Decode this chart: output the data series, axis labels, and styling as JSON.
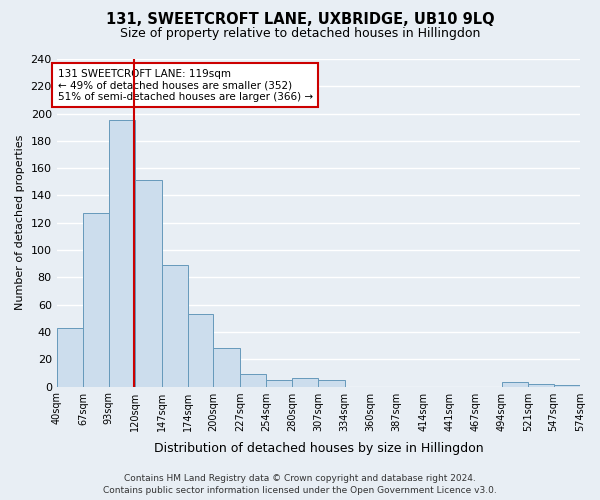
{
  "title": "131, SWEETCROFT LANE, UXBRIDGE, UB10 9LQ",
  "subtitle": "Size of property relative to detached houses in Hillingdon",
  "xlabel": "Distribution of detached houses by size in Hillingdon",
  "ylabel": "Number of detached properties",
  "bin_edges": [
    40,
    67,
    93,
    120,
    147,
    174,
    200,
    227,
    254,
    280,
    307,
    334,
    360,
    387,
    414,
    441,
    467,
    494,
    521,
    547,
    574
  ],
  "bar_heights": [
    43,
    127,
    195,
    151,
    89,
    53,
    28,
    9,
    5,
    6,
    5,
    0,
    0,
    0,
    0,
    0,
    0,
    3,
    2,
    1
  ],
  "bar_color": "#ccdded",
  "bar_edge_color": "#6699bb",
  "property_size": 119,
  "vline_color": "#cc0000",
  "annotation_text": "131 SWEETCROFT LANE: 119sqm\n← 49% of detached houses are smaller (352)\n51% of semi-detached houses are larger (366) →",
  "annotation_box_color": "#ffffff",
  "annotation_box_edge": "#cc0000",
  "ylim": [
    0,
    240
  ],
  "yticks": [
    0,
    20,
    40,
    60,
    80,
    100,
    120,
    140,
    160,
    180,
    200,
    220,
    240
  ],
  "background_color": "#e8eef4",
  "grid_color": "#ffffff",
  "footer_line1": "Contains HM Land Registry data © Crown copyright and database right 2024.",
  "footer_line2": "Contains public sector information licensed under the Open Government Licence v3.0."
}
